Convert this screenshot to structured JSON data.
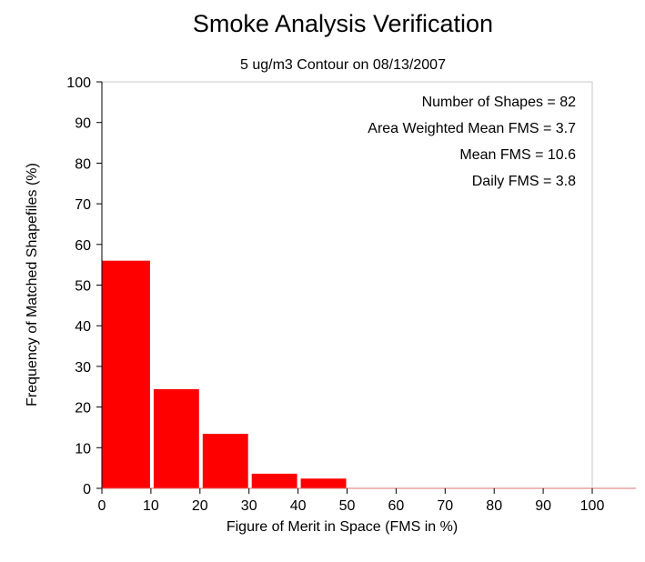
{
  "chart_data": {
    "type": "bar",
    "title": "Smoke Analysis Verification",
    "subtitle": "5 ug/m3 Contour on 08/13/2007",
    "xlabel": "Figure of Merit in Space (FMS in %)",
    "ylabel": "Frequency of Matched Shapefiles (%)",
    "xlim": [
      0,
      100
    ],
    "ylim": [
      0,
      100
    ],
    "x_ticks": [
      0,
      10,
      20,
      30,
      40,
      50,
      60,
      70,
      80,
      90,
      100
    ],
    "y_ticks": [
      0,
      10,
      20,
      30,
      40,
      50,
      60,
      70,
      80,
      90,
      100
    ],
    "bins": [
      {
        "start": 0,
        "end": 10,
        "value": 56
      },
      {
        "start": 10,
        "end": 20,
        "value": 24.4
      },
      {
        "start": 20,
        "end": 30,
        "value": 13.4
      },
      {
        "start": 30,
        "end": 40,
        "value": 3.6
      },
      {
        "start": 40,
        "end": 50,
        "value": 2.4
      },
      {
        "start": 50,
        "end": 60,
        "value": 0
      },
      {
        "start": 60,
        "end": 70,
        "value": 0
      },
      {
        "start": 70,
        "end": 80,
        "value": 0
      },
      {
        "start": 80,
        "end": 90,
        "value": 0
      },
      {
        "start": 90,
        "end": 100,
        "value": 0
      }
    ],
    "annotations": [
      "Number of Shapes = 82",
      "Area Weighted Mean FMS = 3.7",
      "Mean FMS = 10.6",
      "Daily FMS = 3.8"
    ],
    "annotation_placement": "top-right",
    "bar_color": "#ff0000",
    "grid": false,
    "legend": "none"
  }
}
